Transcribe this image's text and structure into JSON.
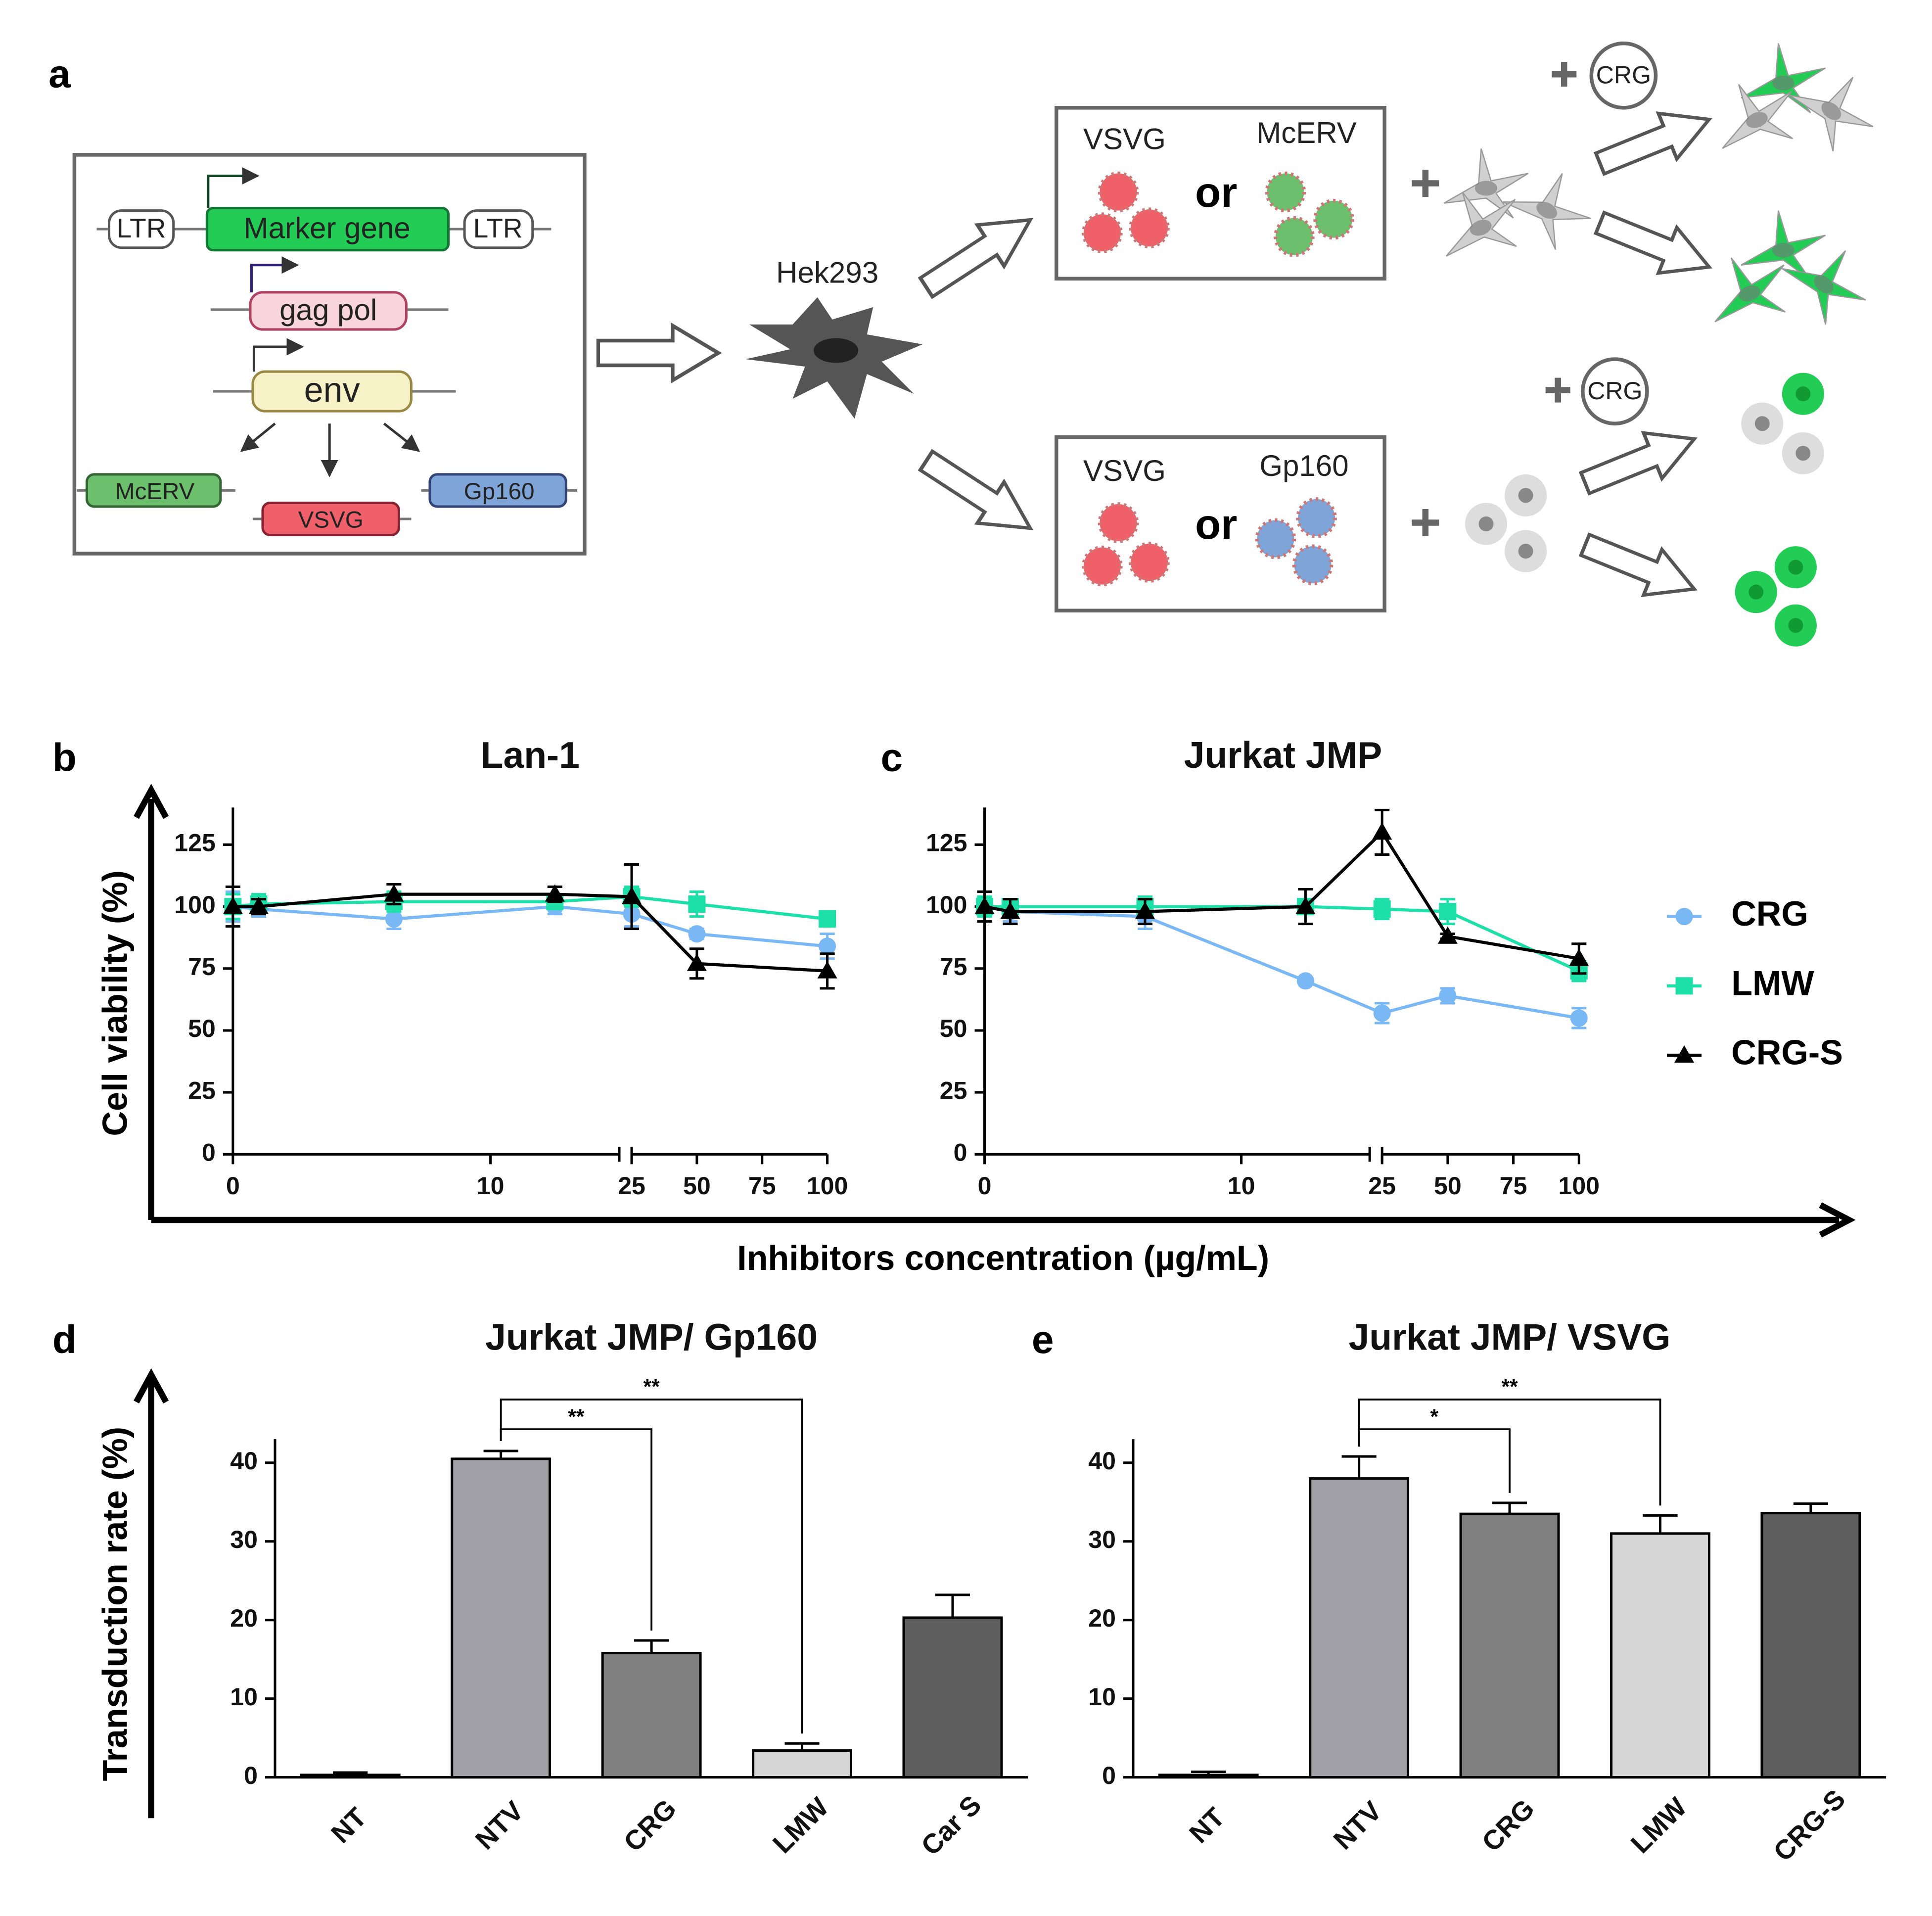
{
  "diagram": {
    "panel": "a",
    "vector": {
      "ltr_left": "LTR",
      "marker": "Marker gene",
      "ltr_right": "LTR",
      "gagpol": "gag pol",
      "env": "env",
      "mcerv": "McERV",
      "vsvg": "VSVG",
      "gp160": "Gp160"
    },
    "producer": "Hek293",
    "top_box": {
      "left": "VSVG",
      "or": "or",
      "right": "McERV"
    },
    "bottom_box": {
      "left": "VSVG",
      "or": "or",
      "right": "Gp160"
    },
    "inhibitor_top": "CRG",
    "inhibitor_bottom": "CRG"
  },
  "chart_data": [
    {
      "type": "line",
      "panel": "b",
      "title": "Lan-1",
      "ylabel": "Cell viability (%)",
      "xlabel": "Inhibitors concentration (µg/mL)",
      "xlim": [
        0,
        100
      ],
      "xbreak": [
        15,
        25
      ],
      "xticks": [
        0,
        10,
        25,
        50,
        75,
        100
      ],
      "ylim": [
        0,
        140
      ],
      "yticks": [
        0,
        25,
        50,
        75,
        100,
        125
      ],
      "grid": false,
      "x": [
        0,
        1,
        6.25,
        12.5,
        25,
        50,
        100
      ],
      "series": [
        {
          "name": "CRG",
          "color": "#7ab8f5",
          "marker": "circle",
          "values": [
            100,
            99,
            95,
            100,
            97,
            89,
            84
          ],
          "errors": [
            6,
            3,
            4,
            3,
            5,
            2,
            5
          ]
        },
        {
          "name": "LMW",
          "color": "#1de0a8",
          "marker": "square",
          "values": [
            100,
            101,
            102,
            102,
            104,
            101,
            95
          ],
          "errors": [
            5,
            4,
            4,
            3,
            4,
            5,
            3
          ]
        },
        {
          "name": "CRG-S",
          "color": "#000000",
          "marker": "triangle",
          "values": [
            100,
            100,
            105,
            105,
            104,
            77,
            74
          ],
          "errors": [
            8,
            3,
            4,
            3,
            13,
            6,
            7
          ]
        }
      ]
    },
    {
      "type": "line",
      "panel": "c",
      "title": "Jurkat JMP",
      "legend": "right",
      "xlim": [
        0,
        100
      ],
      "xbreak": [
        15,
        25
      ],
      "xticks": [
        0,
        10,
        25,
        50,
        75,
        100
      ],
      "ylim": [
        0,
        140
      ],
      "yticks": [
        0,
        25,
        50,
        75,
        100,
        125
      ],
      "grid": false,
      "x": [
        0,
        1,
        6.25,
        12.5,
        25,
        50,
        100
      ],
      "series": [
        {
          "name": "CRG",
          "color": "#7ab8f5",
          "marker": "circle",
          "values": [
            100,
            98,
            96,
            70,
            57,
            64,
            55
          ],
          "errors": [
            4,
            4,
            5,
            1,
            4,
            3,
            4
          ]
        },
        {
          "name": "LMW",
          "color": "#1de0a8",
          "marker": "square",
          "values": [
            100,
            100,
            100,
            100,
            99,
            98,
            74
          ],
          "errors": [
            4,
            3,
            4,
            3,
            4,
            5,
            4
          ]
        },
        {
          "name": "CRG-S",
          "color": "#000000",
          "marker": "triangle",
          "values": [
            100,
            98,
            98,
            100,
            130,
            88,
            79
          ],
          "errors": [
            6,
            5,
            5,
            7,
            9,
            1,
            6
          ]
        }
      ]
    },
    {
      "type": "bar",
      "panel": "d",
      "title": "Jurkat JMP/ Gp160",
      "ylabel": "Transduction rate (%)",
      "categories": [
        "NT",
        "NTV",
        "CRG",
        "LMW",
        "Car S"
      ],
      "values": [
        0.3,
        40.5,
        15.8,
        3.4,
        20.3
      ],
      "errors": [
        0.3,
        1.0,
        1.6,
        0.9,
        2.9
      ],
      "colors": [
        "#9a9aa0",
        "#a0a0a6",
        "#808080",
        "#d6d6d6",
        "#5e5e5e"
      ],
      "ylim": [
        0,
        43
      ],
      "yticks": [
        0,
        10,
        20,
        30,
        40
      ],
      "grid": false,
      "significance": [
        {
          "from": "NTV",
          "to": "CRG",
          "label": "**"
        },
        {
          "from": "NTV",
          "to": "LMW",
          "label": "**"
        }
      ]
    },
    {
      "type": "bar",
      "panel": "e",
      "title": "Jurkat JMP/ VSVG",
      "categories": [
        "NT",
        "NTV",
        "CRG",
        "LMW",
        "CRG-S"
      ],
      "values": [
        0.3,
        38,
        33.5,
        31,
        33.6
      ],
      "errors": [
        0.4,
        2.8,
        1.4,
        2.3,
        1.2
      ],
      "colors": [
        "#9a9aa0",
        "#a0a0a6",
        "#808080",
        "#d6d6d6",
        "#5e5e5e"
      ],
      "ylim": [
        0,
        43
      ],
      "yticks": [
        0,
        10,
        20,
        30,
        40
      ],
      "grid": false,
      "significance": [
        {
          "from": "NTV",
          "to": "CRG",
          "label": "*"
        },
        {
          "from": "NTV",
          "to": "LMW",
          "label": "**"
        }
      ]
    }
  ]
}
